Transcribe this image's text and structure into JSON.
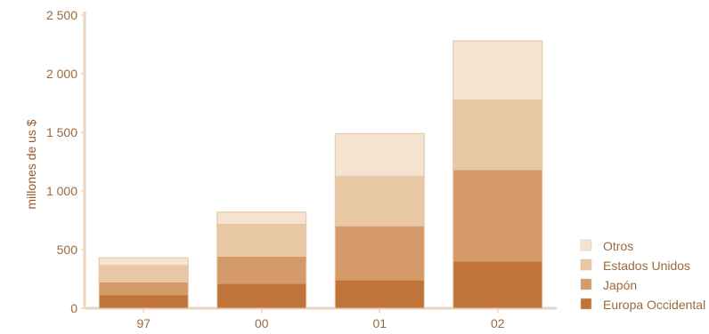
{
  "chart_data": {
    "type": "bar",
    "stacked": true,
    "categories": [
      "97",
      "00",
      "01",
      "02"
    ],
    "series": [
      {
        "name": "Europa Occidental",
        "color": "#c0743a",
        "values": [
          110,
          210,
          240,
          400
        ]
      },
      {
        "name": "Japón",
        "color": "#d59a69",
        "values": [
          110,
          230,
          460,
          780
        ]
      },
      {
        "name": "Estados Unidos",
        "color": "#e8c8a5",
        "values": [
          150,
          280,
          430,
          600
        ]
      },
      {
        "name": "Otros",
        "color": "#f3e3d0",
        "values": [
          60,
          100,
          360,
          500
        ]
      }
    ],
    "ylabel": "millones de us $",
    "ylim": [
      0,
      2500
    ],
    "yticks": [
      0,
      500,
      1000,
      1500,
      2000,
      2500
    ],
    "ytick_labels": [
      "0",
      "500",
      "1 000",
      "1 500",
      "2 000",
      "2 500"
    ],
    "legend": {
      "placement": "right-bottom",
      "order": [
        "Otros",
        "Estados Unidos",
        "Japón",
        "Europa Occidental"
      ]
    },
    "grid": false
  }
}
